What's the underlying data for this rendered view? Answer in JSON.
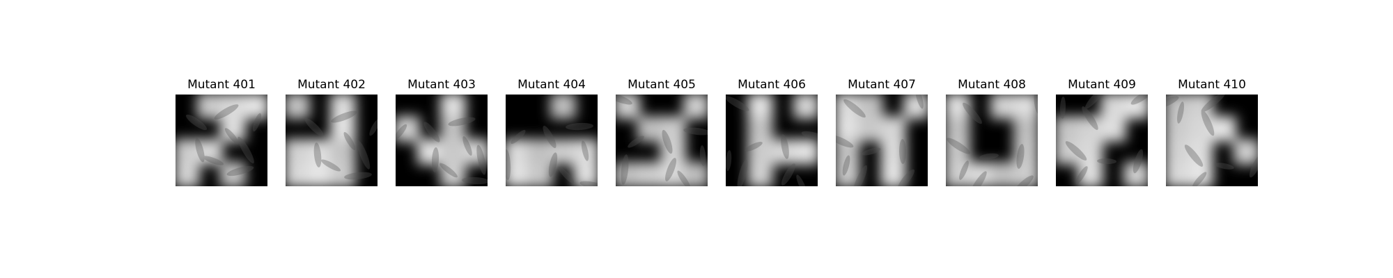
{
  "panels": [
    {
      "title": "Mutant 401",
      "mask": [
        [
          0,
          1,
          1,
          1
        ],
        [
          0,
          0,
          1,
          0
        ],
        [
          1,
          1,
          0,
          0
        ],
        [
          1,
          0,
          1,
          0
        ]
      ]
    },
    {
      "title": "Mutant 402",
      "mask": [
        [
          1,
          0,
          1,
          0
        ],
        [
          0,
          0,
          1,
          0
        ],
        [
          1,
          1,
          1,
          0
        ],
        [
          1,
          1,
          1,
          0
        ]
      ]
    },
    {
      "title": "Mutant 403",
      "mask": [
        [
          0,
          0,
          1,
          0
        ],
        [
          1,
          0,
          1,
          0
        ],
        [
          0,
          1,
          1,
          1
        ],
        [
          0,
          0,
          1,
          0
        ]
      ]
    },
    {
      "title": "Mutant 404",
      "mask": [
        [
          0,
          0,
          1,
          0
        ],
        [
          0,
          0,
          0,
          0
        ],
        [
          1,
          1,
          1,
          1
        ],
        [
          1,
          1,
          0,
          1
        ]
      ]
    },
    {
      "title": "Mutant 405",
      "mask": [
        [
          1,
          0,
          0,
          1
        ],
        [
          0,
          1,
          1,
          0
        ],
        [
          0,
          0,
          1,
          0
        ],
        [
          1,
          1,
          1,
          1
        ]
      ]
    },
    {
      "title": "Mutant 406",
      "mask": [
        [
          0,
          1,
          0,
          1
        ],
        [
          0,
          1,
          0,
          0
        ],
        [
          0,
          1,
          1,
          1
        ],
        [
          0,
          1,
          0,
          0
        ]
      ]
    },
    {
      "title": "Mutant 407",
      "mask": [
        [
          1,
          1,
          0,
          1
        ],
        [
          1,
          1,
          1,
          0
        ],
        [
          1,
          0,
          1,
          0
        ],
        [
          1,
          0,
          1,
          0
        ]
      ]
    },
    {
      "title": "Mutant 408",
      "mask": [
        [
          1,
          0,
          1,
          1
        ],
        [
          1,
          0,
          0,
          1
        ],
        [
          1,
          0,
          0,
          1
        ],
        [
          1,
          1,
          1,
          1
        ]
      ]
    },
    {
      "title": "Mutant 409",
      "mask": [
        [
          0,
          0,
          1,
          1
        ],
        [
          1,
          1,
          1,
          0
        ],
        [
          1,
          1,
          0,
          0
        ],
        [
          0,
          1,
          0,
          1
        ]
      ]
    },
    {
      "title": "Mutant 410",
      "mask": [
        [
          1,
          1,
          0,
          0
        ],
        [
          1,
          1,
          1,
          0
        ],
        [
          1,
          1,
          0,
          1
        ],
        [
          1,
          1,
          0,
          0
        ]
      ]
    }
  ]
}
